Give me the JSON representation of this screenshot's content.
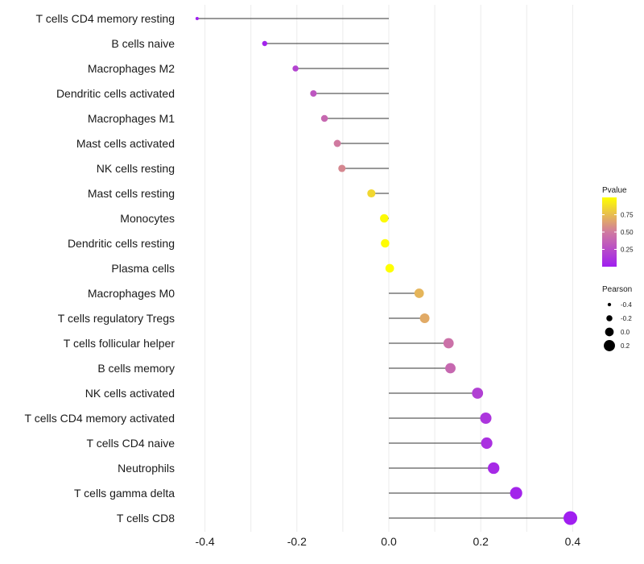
{
  "chart_data": {
    "type": "lollipop",
    "title": "",
    "xlabel": "",
    "ylabel": "",
    "xlim": [
      -0.42,
      0.41
    ],
    "xticks": [
      -0.4,
      -0.2,
      0.0,
      0.2,
      0.4
    ],
    "xtick_labels": [
      "-0.4",
      "-0.2",
      "0.0",
      "0.2",
      "0.4"
    ],
    "grid": true,
    "categories": [
      "T cells CD4 memory resting",
      "B cells naive",
      "Macrophages M2",
      "Dendritic cells activated",
      "Macrophages M1",
      "Mast cells activated",
      "NK cells resting",
      "Mast cells resting",
      "Monocytes",
      "Dendritic cells resting",
      "Plasma cells",
      "Macrophages M0",
      "T cells regulatory  Tregs",
      "T cells follicular helper",
      "B cells memory",
      "NK cells activated",
      "T cells CD4 memory activated",
      "T cells CD4 naive",
      "Neutrophils",
      "T cells gamma delta",
      "T cells CD8"
    ],
    "pearson": [
      -0.417,
      -0.27,
      -0.203,
      -0.164,
      -0.14,
      -0.112,
      -0.102,
      -0.038,
      -0.01,
      -0.008,
      0.002,
      0.066,
      0.078,
      0.13,
      0.134,
      0.193,
      0.211,
      0.213,
      0.228,
      0.277,
      0.395
    ],
    "pvalue": [
      0.0,
      0.03,
      0.2,
      0.3,
      0.4,
      0.5,
      0.55,
      0.85,
      0.98,
      0.99,
      1.0,
      0.72,
      0.68,
      0.45,
      0.4,
      0.18,
      0.12,
      0.1,
      0.06,
      0.03,
      0.001
    ],
    "legend": {
      "color": {
        "title": "Pvalue",
        "ticks": [
          0.75,
          0.5,
          0.25
        ],
        "tick_labels": [
          "0.75",
          "0.50",
          "0.25"
        ],
        "low_color": "#a01ff0",
        "mid_color": "#d07aa0",
        "high_color": "#ffff00"
      },
      "size": {
        "title": "Pearson",
        "values": [
          -0.4,
          -0.2,
          0.0,
          0.2
        ],
        "labels": [
          "-0.4",
          "-0.2",
          "0.0",
          "0.2"
        ]
      }
    }
  }
}
